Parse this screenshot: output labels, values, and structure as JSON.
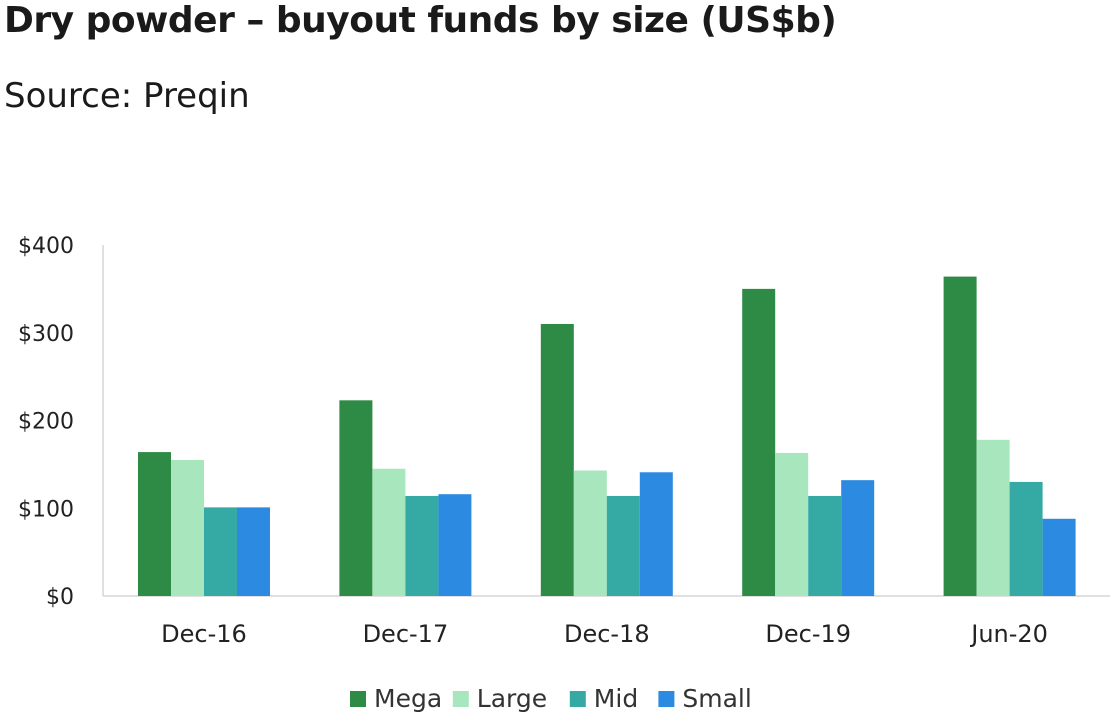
{
  "title": "Dry powder – buyout funds by size (US$b)",
  "subtitle": "Source: Preqin",
  "chart_data": {
    "type": "bar",
    "title": "Dry powder – buyout funds by size (US$b)",
    "subtitle": "Source: Preqin",
    "xlabel": "",
    "ylabel": "",
    "categories": [
      "Dec-16",
      "Dec-17",
      "Dec-18",
      "Dec-19",
      "Jun-20"
    ],
    "ylim": [
      0,
      400
    ],
    "yticks": [
      0,
      100,
      200,
      300,
      400
    ],
    "ytick_labels": [
      "$0",
      "$100",
      "$200",
      "$300",
      "$400"
    ],
    "grid": false,
    "legend_position": "bottom",
    "series": [
      {
        "name": "Mega",
        "color": "#2e8b45",
        "values": [
          164,
          223,
          310,
          350,
          364
        ]
      },
      {
        "name": "Large",
        "color": "#a8e6bd",
        "values": [
          155,
          145,
          143,
          163,
          178
        ]
      },
      {
        "name": "Mid",
        "color": "#35aaa5",
        "values": [
          101,
          114,
          114,
          114,
          130
        ]
      },
      {
        "name": "Small",
        "color": "#2c8ae0",
        "values": [
          101,
          116,
          141,
          132,
          88
        ]
      }
    ]
  }
}
